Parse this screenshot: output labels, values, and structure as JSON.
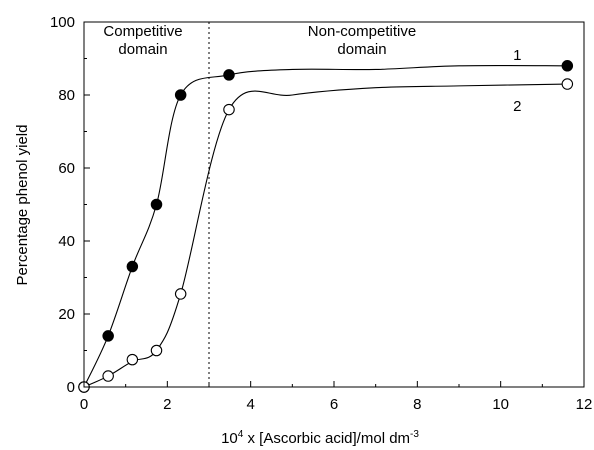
{
  "chart_data": {
    "type": "scatter",
    "title": "",
    "xlabel_prefix": "10",
    "xlabel_prefix_sup": "4",
    "xlabel_main": " x [Ascorbic acid]/mol dm",
    "xlabel_sup": "-3",
    "ylabel": "Percentage phenol yield",
    "xlim": [
      0,
      12
    ],
    "ylim": [
      0,
      100
    ],
    "xticks": [
      0,
      2,
      4,
      6,
      8,
      10,
      12
    ],
    "yticks": [
      0,
      20,
      40,
      60,
      80,
      100
    ],
    "xtick_labels": [
      "0",
      "2",
      "4",
      "6",
      "8",
      "10",
      "12"
    ],
    "ytick_labels": [
      "0",
      "20",
      "40",
      "60",
      "80",
      "100"
    ],
    "grid": false,
    "legend": "none",
    "divider_x": 3.0,
    "region_labels": {
      "left_line1": "Competitive",
      "left_line2": "domain",
      "right_line1": "Non-competitive",
      "right_line2": "domain"
    },
    "series": [
      {
        "name": "1",
        "marker": "filled-circle",
        "x": [
          0,
          0.58,
          1.16,
          1.74,
          2.32,
          3.48,
          11.6
        ],
        "y": [
          0,
          14,
          33,
          50,
          80,
          85.5,
          88
        ],
        "curve": [
          [
            0,
            0
          ],
          [
            0.58,
            14
          ],
          [
            1.16,
            33
          ],
          [
            1.74,
            50
          ],
          [
            2.32,
            80
          ],
          [
            3.48,
            85.5
          ],
          [
            5,
            87
          ],
          [
            7,
            87
          ],
          [
            9,
            88
          ],
          [
            11.6,
            88
          ]
        ]
      },
      {
        "name": "2",
        "marker": "open-circle",
        "x": [
          0,
          0.58,
          1.16,
          1.74,
          2.32,
          3.48,
          11.6
        ],
        "y": [
          0,
          3,
          7.5,
          10,
          25.5,
          76,
          83
        ],
        "curve": [
          [
            0,
            0
          ],
          [
            0.58,
            3
          ],
          [
            1.16,
            7
          ],
          [
            1.74,
            10
          ],
          [
            2.32,
            25.5
          ],
          [
            3.48,
            76
          ],
          [
            5,
            80
          ],
          [
            7,
            82
          ],
          [
            9,
            82.5
          ],
          [
            11.6,
            83
          ]
        ]
      }
    ],
    "curve_labels": [
      {
        "text": "1",
        "x": 10.4,
        "y": 91
      },
      {
        "text": "2",
        "x": 10.4,
        "y": 77
      }
    ]
  }
}
